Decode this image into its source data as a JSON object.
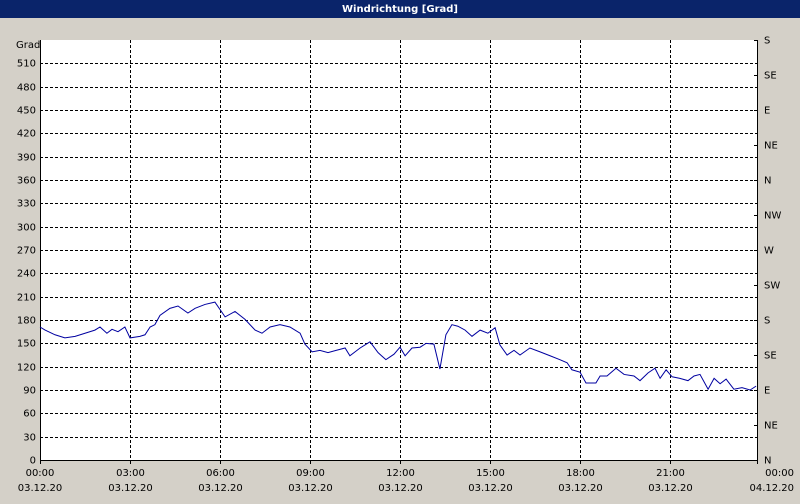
{
  "chart_data": {
    "type": "line",
    "title": "Windrichtung [Grad]",
    "y_label": "Grad",
    "x": [
      0,
      0.17,
      0.5,
      0.83,
      1.17,
      1.5,
      1.83,
      2,
      2.23,
      2.4,
      2.6,
      2.83,
      3,
      3.33,
      3.5,
      3.67,
      3.83,
      4,
      4.33,
      4.6,
      4.93,
      5.17,
      5.5,
      5.83,
      6.17,
      6.5,
      6.83,
      7.17,
      7.4,
      7.67,
      8,
      8.33,
      8.67,
      8.83,
      9.07,
      9.33,
      9.6,
      9.87,
      10.17,
      10.33,
      10.67,
      11,
      11.27,
      11.53,
      11.8,
      12,
      12.17,
      12.4,
      12.67,
      12.87,
      13.13,
      13.33,
      13.53,
      13.73,
      13.93,
      14.17,
      14.4,
      14.67,
      14.93,
      15.17,
      15.33,
      15.57,
      15.8,
      16,
      16.33,
      16.67,
      17,
      17.33,
      17.57,
      17.73,
      18,
      18.2,
      18.53,
      18.67,
      18.9,
      19.2,
      19.47,
      19.8,
      20,
      20.27,
      20.5,
      20.67,
      20.87,
      21.07,
      21.33,
      21.6,
      21.8,
      22,
      22.27,
      22.47,
      22.67,
      22.87,
      23.13,
      23.4,
      23.67,
      23.87
    ],
    "series": [
      {
        "name": "Windrichtung",
        "color": "#0000a0",
        "values": [
          171,
          167,
          161,
          157,
          159,
          163,
          167,
          171,
          163,
          168,
          165,
          171,
          157,
          159,
          161,
          171,
          174,
          186,
          195,
          198,
          189,
          195,
          200,
          203,
          184,
          191,
          181,
          167,
          163,
          171,
          174,
          171,
          163,
          149,
          139,
          141,
          138,
          141,
          144,
          134,
          144,
          152,
          138,
          129,
          136,
          145,
          134,
          144,
          145,
          150,
          149,
          117,
          161,
          174,
          172,
          167,
          159,
          167,
          163,
          170,
          148,
          135,
          141,
          135,
          144,
          139,
          134,
          129,
          125,
          116,
          113,
          99,
          99,
          108,
          108,
          118,
          110,
          108,
          102,
          112,
          118,
          105,
          116,
          107,
          105,
          102,
          108,
          110,
          91,
          105,
          98,
          104,
          91,
          93,
          90,
          95
        ]
      }
    ],
    "xlim": [
      0,
      24
    ],
    "xticks": [
      {
        "value": 0,
        "label": "00:00",
        "date": "03.12.20"
      },
      {
        "value": 3,
        "label": "03:00",
        "date": "03.12.20"
      },
      {
        "value": 6,
        "label": "06:00",
        "date": "03.12.20"
      },
      {
        "value": 9,
        "label": "09:00",
        "date": "03.12.20"
      },
      {
        "value": 12,
        "label": "12:00",
        "date": "03.12.20"
      },
      {
        "value": 15,
        "label": "15:00",
        "date": "03.12.20"
      },
      {
        "value": 18,
        "label": "18:00",
        "date": "03.12.20"
      },
      {
        "value": 21,
        "label": "21:00",
        "date": "03.12.20"
      },
      {
        "value": 24,
        "label": "00:00",
        "date": "04.12.20"
      }
    ],
    "ylim": [
      0,
      540
    ],
    "yticks": [
      0,
      30,
      60,
      90,
      120,
      150,
      180,
      210,
      240,
      270,
      300,
      330,
      360,
      390,
      420,
      450,
      480,
      510
    ],
    "y2lim": [
      0,
      540
    ],
    "y2ticks": [
      {
        "value": 0,
        "label": "N"
      },
      {
        "value": 45,
        "label": "NE"
      },
      {
        "value": 90,
        "label": "E"
      },
      {
        "value": 135,
        "label": "SE"
      },
      {
        "value": 180,
        "label": "S"
      },
      {
        "value": 225,
        "label": "SW"
      },
      {
        "value": 270,
        "label": "W"
      },
      {
        "value": 315,
        "label": "NW"
      },
      {
        "value": 360,
        "label": "N"
      },
      {
        "value": 405,
        "label": "NE"
      },
      {
        "value": 450,
        "label": "E"
      },
      {
        "value": 495,
        "label": "SE"
      },
      {
        "value": 540,
        "label": "S"
      }
    ],
    "grid": true
  }
}
